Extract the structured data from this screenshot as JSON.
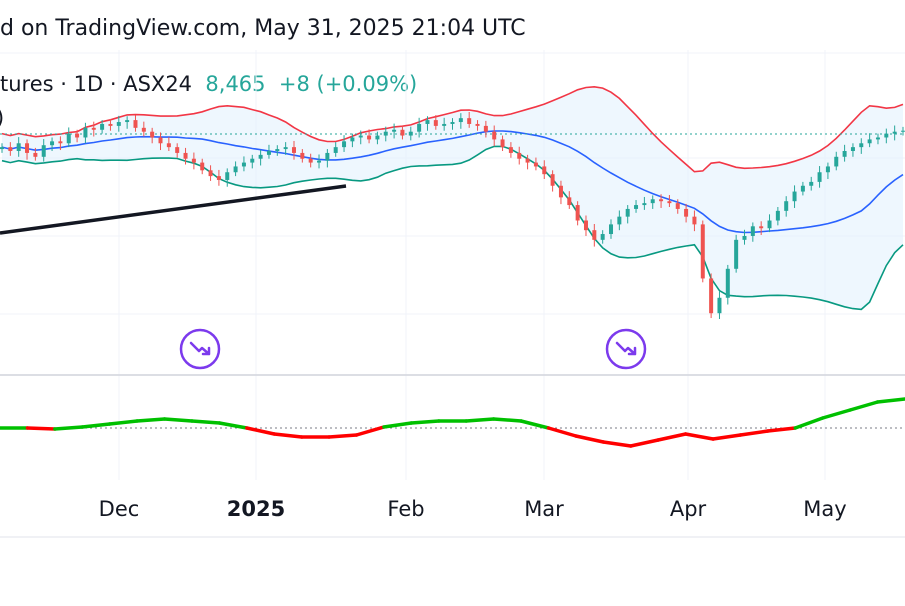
{
  "header": {
    "published_text": "d on TradingView.com, May 31, 2025 21:04 UTC"
  },
  "symbol": {
    "name_fragment": "tures",
    "interval": "1D",
    "exchange": "ASX24",
    "last_price": "8,465",
    "change": "+8 (+0.09%)",
    "separator": "·",
    "indicator_fragment": ")"
  },
  "colors": {
    "up": "#26a69a",
    "down": "#ef5350",
    "bb_upper": "#f23645",
    "bb_basis": "#2962ff",
    "bb_lower": "#089981",
    "bb_fill": "#e3f2fd",
    "trendline": "#131722",
    "osc_up": "#00c000",
    "osc_down": "#ff0000",
    "icon": "#7c3aed"
  },
  "icons": [
    "earnings-arrow-icon",
    "earnings-arrow-icon"
  ],
  "chart_data": {
    "type": "candlestick",
    "x_ticks": [
      {
        "label": "Dec",
        "bold": false
      },
      {
        "label": "2025",
        "bold": true
      },
      {
        "label": "Feb",
        "bold": false
      },
      {
        "label": "Mar",
        "bold": false
      },
      {
        "label": "Apr",
        "bold": false
      },
      {
        "label": "May",
        "bold": false
      }
    ],
    "overlays": [
      "Bollinger Bands",
      "trendline"
    ],
    "lower_pane": "oscillator (green above / red below zero line)",
    "y_range": [
      7200,
      8650
    ],
    "closes": [
      8380,
      8360,
      8400,
      8350,
      8330,
      8390,
      8410,
      8400,
      8450,
      8430,
      8480,
      8470,
      8500,
      8490,
      8510,
      8520,
      8480,
      8460,
      8430,
      8400,
      8380,
      8350,
      8320,
      8300,
      8260,
      8230,
      8210,
      8250,
      8280,
      8300,
      8320,
      8340,
      8360,
      8370,
      8380,
      8350,
      8320,
      8300,
      8310,
      8350,
      8380,
      8410,
      8430,
      8440,
      8420,
      8440,
      8460,
      8470,
      8440,
      8460,
      8500,
      8520,
      8490,
      8500,
      8510,
      8530,
      8500,
      8490,
      8460,
      8420,
      8380,
      8350,
      8320,
      8300,
      8280,
      8240,
      8180,
      8120,
      8080,
      8000,
      7950,
      7900,
      7930,
      7980,
      8020,
      8060,
      8080,
      8090,
      8110,
      8100,
      8090,
      8060,
      8020,
      7980,
      7700,
      7520,
      7600,
      7750,
      7900,
      7920,
      7970,
      7960,
      8000,
      8050,
      8100,
      8150,
      8180,
      8200,
      8250,
      8280,
      8330,
      8360,
      8380,
      8400,
      8420,
      8430,
      8450,
      8460,
      8465
    ],
    "oscillator": [
      0.0,
      0.0,
      -0.05,
      0.05,
      0.2,
      0.35,
      0.45,
      0.35,
      0.25,
      0.0,
      -0.3,
      -0.45,
      -0.45,
      -0.35,
      0.05,
      0.25,
      0.35,
      0.35,
      0.45,
      0.35,
      0.0,
      -0.4,
      -0.7,
      -0.9,
      -0.6,
      -0.3,
      -0.55,
      -0.35,
      -0.15,
      0.0,
      0.5,
      0.9,
      1.3,
      1.45
    ]
  }
}
